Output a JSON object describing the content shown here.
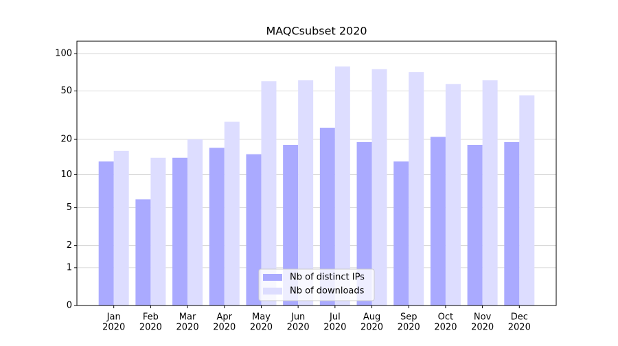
{
  "chart_data": {
    "type": "bar",
    "title": "MAQCsubset 2020",
    "categories": [
      [
        "Jan",
        "2020"
      ],
      [
        "Feb",
        "2020"
      ],
      [
        "Mar",
        "2020"
      ],
      [
        "Apr",
        "2020"
      ],
      [
        "May",
        "2020"
      ],
      [
        "Jun",
        "2020"
      ],
      [
        "Jul",
        "2020"
      ],
      [
        "Aug",
        "2020"
      ],
      [
        "Sep",
        "2020"
      ],
      [
        "Oct",
        "2020"
      ],
      [
        "Nov",
        "2020"
      ],
      [
        "Dec",
        "2020"
      ]
    ],
    "series": [
      {
        "name": "Nb of distinct IPs",
        "color": "#aaaaff",
        "values": [
          13,
          6,
          14,
          17,
          15,
          18,
          25,
          19,
          13,
          21,
          18,
          19
        ]
      },
      {
        "name": "Nb of downloads",
        "color": "#ddddff",
        "values": [
          16,
          14,
          20,
          28,
          60,
          61,
          79,
          75,
          71,
          57,
          61,
          46
        ]
      }
    ],
    "yscale": "log1p",
    "ylim": [
      0,
      126
    ],
    "yticks": [
      0,
      1,
      2,
      5,
      10,
      20,
      50,
      100
    ],
    "grid": true,
    "legend": "lower center"
  }
}
